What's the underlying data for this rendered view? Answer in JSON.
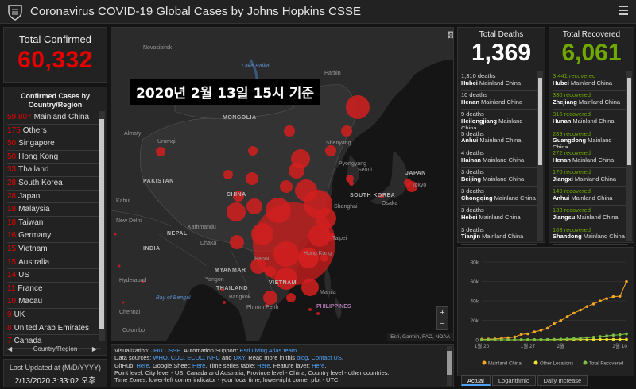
{
  "app": {
    "title": "Coronavirus COVID-19 Global Cases by Johns Hopkins CSSE"
  },
  "confirmed": {
    "label": "Total Confirmed",
    "value": "60,332"
  },
  "countries": {
    "header": "Confirmed Cases by Country/Region",
    "items": [
      {
        "value": "59,807",
        "name": "Mainland China"
      },
      {
        "value": "175",
        "name": "Others"
      },
      {
        "value": "50",
        "name": "Singapore"
      },
      {
        "value": "50",
        "name": "Hong Kong"
      },
      {
        "value": "33",
        "name": "Thailand"
      },
      {
        "value": "28",
        "name": "South Korea"
      },
      {
        "value": "28",
        "name": "Japan"
      },
      {
        "value": "18",
        "name": "Malaysia"
      },
      {
        "value": "18",
        "name": "Taiwan"
      },
      {
        "value": "16",
        "name": "Germany"
      },
      {
        "value": "15",
        "name": "Vietnam"
      },
      {
        "value": "15",
        "name": "Australia"
      },
      {
        "value": "14",
        "name": "US"
      },
      {
        "value": "11",
        "name": "France"
      },
      {
        "value": "10",
        "name": "Macau"
      },
      {
        "value": "9",
        "name": "UK"
      },
      {
        "value": "8",
        "name": "United Arab Emirates"
      },
      {
        "value": "7",
        "name": "Canada"
      }
    ],
    "footer": "Country/Region"
  },
  "updated": {
    "label": "Last Updated at (M/D/YYYY)",
    "value": "2/13/2020 3:33:02 오후"
  },
  "map": {
    "overlay": "2020년 2월 13일 15시 기준",
    "attribution": "Esri, Garmin, FAO, NOAA",
    "zoom_in": "+",
    "zoom_out": "−",
    "labels": [
      {
        "text": "Novosibirsk",
        "cls": ""
      },
      {
        "text": "Lake Baikal",
        "cls": "water"
      },
      {
        "text": "MONGOLIA",
        "cls": "country"
      },
      {
        "text": "Harbin",
        "cls": ""
      },
      {
        "text": "Shenyang",
        "cls": ""
      },
      {
        "text": "Pyongyang",
        "cls": ""
      },
      {
        "text": "Seoul",
        "cls": ""
      },
      {
        "text": "SOUTH KOREA",
        "cls": "country"
      },
      {
        "text": "JAPAN",
        "cls": "country"
      },
      {
        "text": "Tokyo",
        "cls": ""
      },
      {
        "text": "Osaka",
        "cls": ""
      },
      {
        "text": "CHINA",
        "cls": "country"
      },
      {
        "text": "Almaty",
        "cls": ""
      },
      {
        "text": "Urumqi",
        "cls": ""
      },
      {
        "text": "Kabul",
        "cls": ""
      },
      {
        "text": "New Delhi",
        "cls": ""
      },
      {
        "text": "PAKISTAN",
        "cls": "country"
      },
      {
        "text": "NEPAL",
        "cls": "country"
      },
      {
        "text": "Dhaka",
        "cls": ""
      },
      {
        "text": "Shanghai",
        "cls": ""
      },
      {
        "text": "Taipei",
        "cls": ""
      },
      {
        "text": "Hong Kong",
        "cls": ""
      },
      {
        "text": "Hanoi",
        "cls": ""
      },
      {
        "text": "Yangon",
        "cls": ""
      },
      {
        "text": "MYANMAR",
        "cls": "country"
      },
      {
        "text": "THAILAND",
        "cls": "country"
      },
      {
        "text": "Bangkok",
        "cls": ""
      },
      {
        "text": "VIETNAM",
        "cls": "country"
      },
      {
        "text": "Phnom Penh",
        "cls": ""
      },
      {
        "text": "PHILIPPINES",
        "cls": "special"
      },
      {
        "text": "Manila",
        "cls": ""
      },
      {
        "text": "Hyderabad",
        "cls": ""
      },
      {
        "text": "Chennai",
        "cls": ""
      },
      {
        "text": "Bay of Bengal",
        "cls": "water"
      },
      {
        "text": "Colombo",
        "cls": ""
      },
      {
        "text": "INDIA",
        "cls": "country"
      },
      {
        "text": "Kathmandu",
        "cls": ""
      }
    ]
  },
  "info": {
    "lines": [
      [
        {
          "t": "Visualization: "
        },
        {
          "t": "JHU CSSE",
          "l": true
        },
        {
          "t": ". Automation Support: "
        },
        {
          "t": "Esri Living Atlas team",
          "l": true
        },
        {
          "t": "."
        }
      ],
      [
        {
          "t": "Data sources: "
        },
        {
          "t": "WHO, CDC, ECDC, NHC",
          "l": true
        },
        {
          "t": " and "
        },
        {
          "t": "DXY",
          "l": true
        },
        {
          "t": ". Read more in this "
        },
        {
          "t": "blog",
          "l": true
        },
        {
          "t": ". "
        },
        {
          "t": "Contact US",
          "l": true
        },
        {
          "t": "."
        }
      ],
      [
        {
          "t": "GitHub: "
        },
        {
          "t": "Here",
          "l": true
        },
        {
          "t": ". Google Sheet: "
        },
        {
          "t": "Here",
          "l": true
        },
        {
          "t": ". Time series table: "
        },
        {
          "t": "Here",
          "l": true
        },
        {
          "t": ". Feature layer: "
        },
        {
          "t": "Here",
          "l": true
        },
        {
          "t": "."
        }
      ],
      [
        {
          "t": "Point level: City level - US, Canada and Australia; Province level - China; Country level - other countries."
        }
      ],
      [
        {
          "t": "Time Zones: lower-left corner indicator - your local time; lower-right corner plot - UTC."
        }
      ]
    ]
  },
  "deaths": {
    "label": "Total Deaths",
    "value": "1,369",
    "items": [
      {
        "count": "1,310 deaths",
        "place": "Hubei",
        "region": "Mainland China"
      },
      {
        "count": "10 deaths",
        "place": "Henan",
        "region": "Mainland China"
      },
      {
        "count": "9 deaths",
        "place": "Heilongjiang",
        "region": "Mainland China"
      },
      {
        "count": "5 deaths",
        "place": "Anhui",
        "region": "Mainland China"
      },
      {
        "count": "4 deaths",
        "place": "Hainan",
        "region": "Mainland China"
      },
      {
        "count": "3 deaths",
        "place": "Beijing",
        "region": "Mainland China"
      },
      {
        "count": "3 deaths",
        "place": "Chongqing",
        "region": "Mainland China"
      },
      {
        "count": "3 deaths",
        "place": "Hebei",
        "region": "Mainland China"
      },
      {
        "count": "3 deaths",
        "place": "Tianjin",
        "region": "Mainland China"
      }
    ]
  },
  "recovered": {
    "label": "Total Recovered",
    "value": "6,061",
    "items": [
      {
        "count": "3,441 recovered",
        "place": "Hubei",
        "region": "Mainland China"
      },
      {
        "count": "330 recovered",
        "place": "Zhejiang",
        "region": "Mainland China"
      },
      {
        "count": "316 recovered",
        "place": "Hunan",
        "region": "Mainland China"
      },
      {
        "count": "289 recovered",
        "place": "Guangdong",
        "region": "Mainland China"
      },
      {
        "count": "272 recovered",
        "place": "Henan",
        "region": "Mainland China"
      },
      {
        "count": "170 recovered",
        "place": "Jiangxi",
        "region": "Mainland China"
      },
      {
        "count": "149 recovered",
        "place": "Anhui",
        "region": "Mainland China"
      },
      {
        "count": "133 recovered",
        "place": "Jiangsu",
        "region": "Mainland China"
      },
      {
        "count": "103 recovered",
        "place": "Shandong",
        "region": "Mainland China"
      }
    ]
  },
  "tabs": [
    {
      "label": "Actual",
      "active": true
    },
    {
      "label": "Logarithmic",
      "active": false
    },
    {
      "label": "Daily Increase",
      "active": false
    }
  ],
  "colors": {
    "confirmed": "#e60000",
    "recovered": "#70a800",
    "mainland": "#f5a623",
    "other": "#f1e02a",
    "recovered_line": "#7cc242"
  },
  "chart_data": {
    "type": "line",
    "ylim": [
      0,
      80000
    ],
    "yticks": [
      "0",
      "20k",
      "40k",
      "60k",
      "80k"
    ],
    "xticks": [
      {
        "label": "1월 20",
        "i": 0
      },
      {
        "label": "1월 27",
        "i": 7
      },
      {
        "label": "2월",
        "i": 12
      },
      {
        "label": "2월 10",
        "i": 21
      }
    ],
    "x": [
      "1/22",
      "1/23",
      "1/24",
      "1/25",
      "1/26",
      "1/27",
      "1/28",
      "1/29",
      "1/30",
      "1/31",
      "2/1",
      "2/2",
      "2/3",
      "2/4",
      "2/5",
      "2/6",
      "2/7",
      "2/8",
      "2/9",
      "2/10",
      "2/11",
      "2/12",
      "2/13"
    ],
    "series": [
      {
        "name": "Mainland China",
        "color": "#f5a623",
        "values": [
          548,
          643,
          920,
          1406,
          2075,
          2877,
          5509,
          6087,
          8141,
          9802,
          11891,
          16630,
          19716,
          23707,
          27440,
          30587,
          34110,
          36814,
          39829,
          42354,
          44386,
          44759,
          59895
        ]
      },
      {
        "name": "Other Locations",
        "color": "#f1e02a",
        "values": [
          7,
          10,
          21,
          28,
          43,
          50,
          57,
          68,
          81,
          105,
          133,
          151,
          158,
          184,
          218,
          259,
          330,
          347,
          363,
          399,
          409,
          441,
          447
        ]
      },
      {
        "name": "Total Recovered",
        "color": "#7cc242",
        "values": [
          28,
          30,
          36,
          39,
          52,
          61,
          107,
          126,
          143,
          222,
          295,
          480,
          630,
          892,
          1152,
          1545,
          2050,
          2649,
          3281,
          3996,
          4740,
          5150,
          6061
        ]
      }
    ]
  }
}
